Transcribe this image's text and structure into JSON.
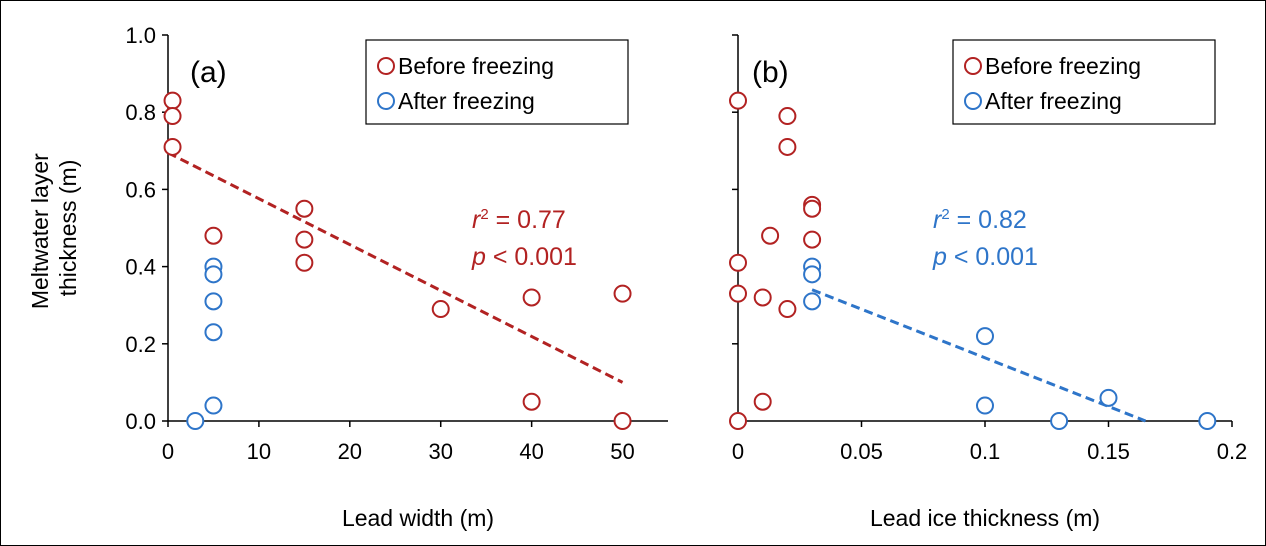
{
  "ylabel_lines": [
    "Meltwater layer",
    "thickness (m)"
  ],
  "colors": {
    "before": "#b22222",
    "after": "#2e75c9",
    "axis": "#000000"
  },
  "chart_data": [
    {
      "type": "scatter",
      "panel_label": "(a)",
      "xlabel": "Lead width (m)",
      "xlim": [
        0,
        55
      ],
      "ylim": [
        0,
        1.0
      ],
      "xticks": [
        0,
        10,
        20,
        30,
        40,
        50
      ],
      "xtick_labels": [
        "0",
        "10",
        "20",
        "30",
        "40",
        "50"
      ],
      "yticks": [
        0,
        0.2,
        0.4,
        0.6,
        0.8,
        1.0
      ],
      "ytick_labels": [
        "0.0",
        "0.2",
        "0.4",
        "0.6",
        "0.8",
        "1.0"
      ],
      "legend_position": "top-right",
      "series": [
        {
          "name": "Before freezing",
          "key": "before",
          "points": [
            [
              0.5,
              0.83
            ],
            [
              0.5,
              0.79
            ],
            [
              0.5,
              0.71
            ],
            [
              5,
              0.48
            ],
            [
              15,
              0.55
            ],
            [
              15,
              0.47
            ],
            [
              15,
              0.41
            ],
            [
              30,
              0.29
            ],
            [
              40,
              0.32
            ],
            [
              40,
              0.05
            ],
            [
              50,
              0.33
            ],
            [
              50,
              0.0
            ]
          ]
        },
        {
          "name": "After freezing",
          "key": "after",
          "points": [
            [
              3,
              0.0
            ],
            [
              5,
              0.4
            ],
            [
              5,
              0.38
            ],
            [
              5,
              0.31
            ],
            [
              5,
              0.23
            ],
            [
              5,
              0.04
            ]
          ]
        }
      ],
      "fit": {
        "series": "before",
        "from": [
          0,
          0.695
        ],
        "to": [
          50,
          0.1
        ],
        "r2_label": "r",
        "r2_sup": "2",
        "r2_value": " = 0.77",
        "p_label": "p",
        "p_value": " < 0.001"
      }
    },
    {
      "type": "scatter",
      "panel_label": "(b)",
      "xlabel": "Lead ice thickness (m)",
      "xlim": [
        0,
        0.2
      ],
      "ylim": [
        0,
        1.0
      ],
      "xticks": [
        0,
        0.05,
        0.1,
        0.15,
        0.2
      ],
      "xtick_labels": [
        "0",
        "0.05",
        "0.1",
        "0.15",
        "0.2"
      ],
      "yticks": [
        0,
        0.2,
        0.4,
        0.6,
        0.8,
        1.0
      ],
      "ytick_labels": [],
      "legend_position": "top-right",
      "series": [
        {
          "name": "Before freezing",
          "key": "before",
          "points": [
            [
              0,
              0.83
            ],
            [
              0,
              0.41
            ],
            [
              0,
              0.33
            ],
            [
              0,
              0.0
            ],
            [
              0.01,
              0.32
            ],
            [
              0.01,
              0.05
            ],
            [
              0.013,
              0.48
            ],
            [
              0.02,
              0.79
            ],
            [
              0.02,
              0.71
            ],
            [
              0.02,
              0.29
            ],
            [
              0.03,
              0.56
            ],
            [
              0.03,
              0.55
            ],
            [
              0.03,
              0.47
            ]
          ]
        },
        {
          "name": "After freezing",
          "key": "after",
          "points": [
            [
              0.03,
              0.4
            ],
            [
              0.03,
              0.38
            ],
            [
              0.03,
              0.31
            ],
            [
              0.1,
              0.22
            ],
            [
              0.1,
              0.04
            ],
            [
              0.13,
              0.0
            ],
            [
              0.15,
              0.06
            ],
            [
              0.19,
              0.0
            ]
          ]
        }
      ],
      "fit": {
        "series": "after",
        "from": [
          0.03,
          0.34
        ],
        "to": [
          0.165,
          0.0
        ],
        "r2_label": "r",
        "r2_sup": "2",
        "r2_value": " = 0.82",
        "p_label": "p",
        "p_value": " < 0.001"
      }
    }
  ]
}
